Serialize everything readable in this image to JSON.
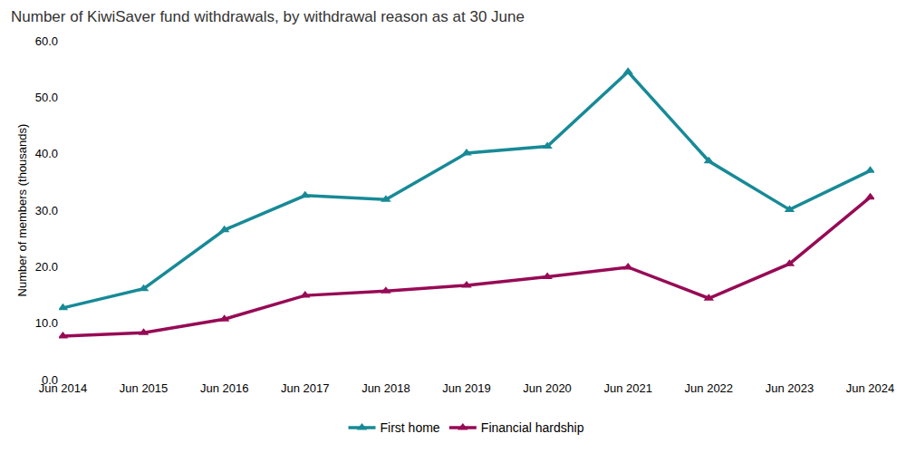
{
  "chart_data": {
    "type": "line",
    "title": "Number of KiwiSaver fund withdrawals, by withdrawal reason as at 30 June",
    "y_label": "Number of members (thousands)",
    "categories": [
      "Jun 2014",
      "Jun 2015",
      "Jun 2016",
      "Jun 2017",
      "Jun 2018",
      "Jun 2019",
      "Jun 2020",
      "Jun 2021",
      "Jun 2022",
      "Jun 2023",
      "Jun 2024"
    ],
    "series": [
      {
        "name": "First home",
        "color": "#178a96",
        "marker": "triangle",
        "line_style": "solid",
        "values": [
          12.7,
          16.1,
          26.5,
          32.6,
          31.9,
          40.1,
          41.3,
          54.5,
          38.7,
          30.1,
          37.0
        ]
      },
      {
        "name": "Financial hardship",
        "color": "#970a55",
        "marker": "triangle",
        "line_style": "solid",
        "values": [
          7.7,
          8.3,
          10.7,
          14.9,
          15.7,
          16.7,
          18.2,
          19.9,
          14.4,
          20.5,
          32.3
        ]
      }
    ],
    "ylim": [
      0,
      60
    ],
    "yticks": [
      {
        "value": 0,
        "label": "0.0"
      },
      {
        "value": 10,
        "label": "10.0"
      },
      {
        "value": 20,
        "label": "20.0"
      },
      {
        "value": 30,
        "label": "30.0"
      },
      {
        "value": 40,
        "label": "40.0"
      },
      {
        "value": 50,
        "label": "50.0"
      },
      {
        "value": 60,
        "label": "60.0"
      }
    ],
    "grid": false,
    "legend": "bottom"
  }
}
